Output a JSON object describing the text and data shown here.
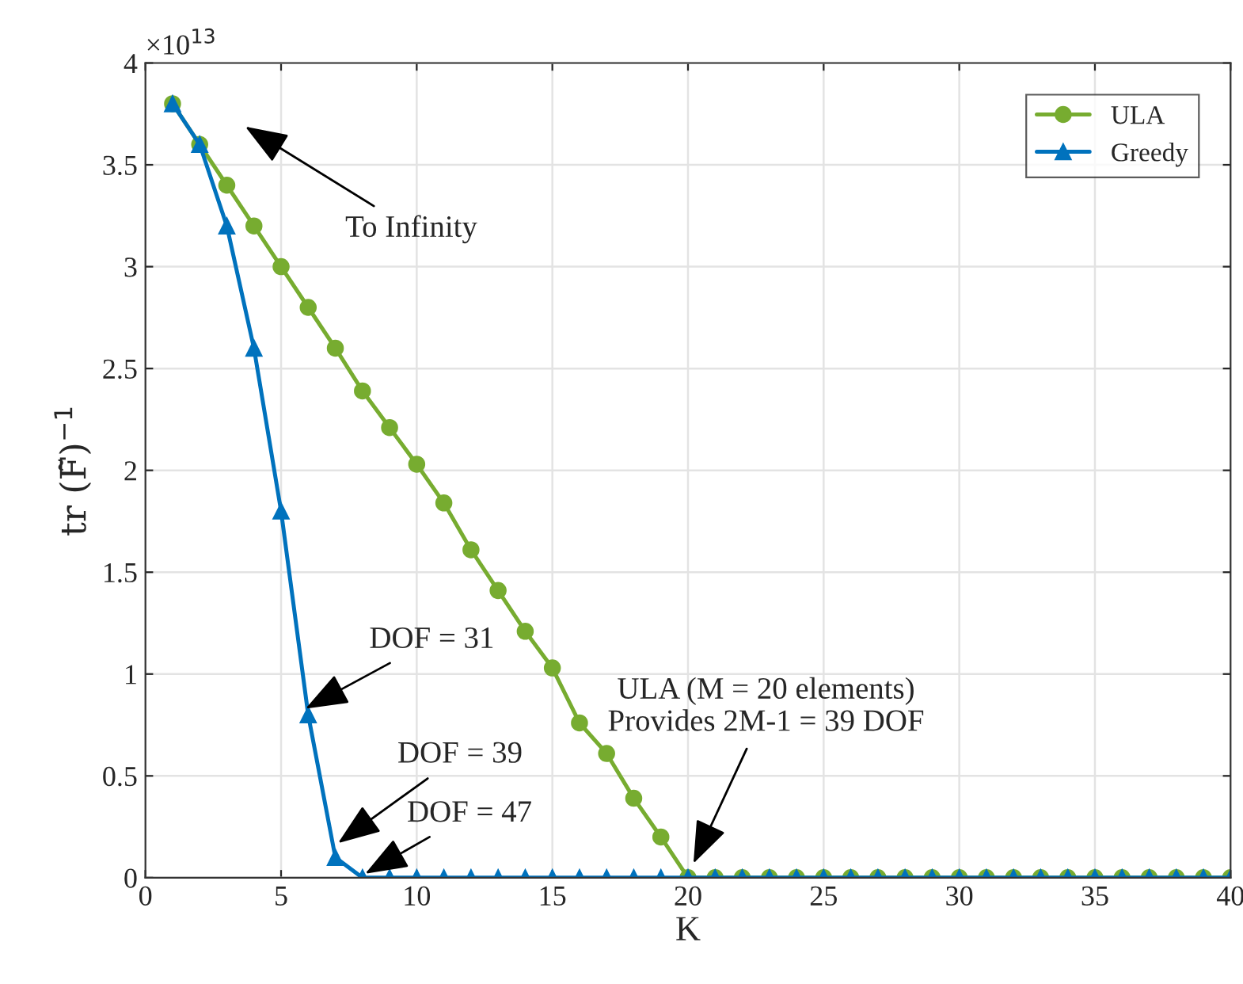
{
  "chart_data": {
    "type": "line",
    "xlabel": "K",
    "ylabel": "tr (F̃)$^{−1}$",
    "x": [
      1,
      2,
      3,
      4,
      5,
      6,
      7,
      8,
      9,
      10,
      11,
      12,
      13,
      14,
      15,
      16,
      17,
      18,
      19,
      20,
      21,
      22,
      23,
      24,
      25,
      26,
      27,
      28,
      29,
      30,
      31,
      32,
      33,
      34,
      35,
      36,
      37,
      38,
      39,
      40
    ],
    "series": [
      {
        "name": "ULA",
        "color": "#77ac30",
        "marker": "circle",
        "values": [
          3.8,
          3.6,
          3.4,
          3.2,
          3.0,
          2.8,
          2.6,
          2.39,
          2.21,
          2.03,
          1.84,
          1.61,
          1.41,
          1.21,
          1.03,
          0.76,
          0.61,
          0.39,
          0.2,
          0,
          0,
          0,
          0,
          0,
          0,
          0,
          0,
          0,
          0,
          0,
          0,
          0,
          0,
          0,
          0,
          0,
          0,
          0,
          0,
          0
        ]
      },
      {
        "name": "Greedy",
        "color": "#0072bd",
        "marker": "triangle",
        "values": [
          3.8,
          3.6,
          3.2,
          2.6,
          1.8,
          0.8,
          0.1,
          0,
          0,
          0,
          0,
          0,
          0,
          0,
          0,
          0,
          0,
          0,
          0,
          0,
          0,
          0,
          0,
          0,
          0,
          0,
          0,
          0,
          0,
          0,
          0,
          0,
          0,
          0,
          0,
          0,
          0,
          0,
          0,
          0
        ]
      }
    ],
    "xlim": [
      0,
      40
    ],
    "xticks": [
      0,
      5,
      10,
      15,
      20,
      25,
      30,
      35,
      40
    ],
    "ylim": [
      0,
      4
    ],
    "yticks": [
      0,
      0.5,
      1,
      1.5,
      2,
      2.5,
      3,
      3.5,
      4
    ],
    "annotations": [
      "To Infinity",
      {
        "text": "DOF = 31",
        "x": 5.9,
        "y": 0.83
      },
      {
        "text": "DOF = 39",
        "x": 7.1,
        "y": 0.17
      },
      {
        "text": "DOF = 47",
        "x": 8.1,
        "y": 0.02
      },
      {
        "text": "ULA (M = 20 elements)\nProvides 2M-1 = 39 DOF",
        "x": 20.2,
        "y": 0.07
      },
      "×10$^{13}$"
    ],
    "grid": true,
    "legend": "top right",
    "line_style": "solid"
  }
}
